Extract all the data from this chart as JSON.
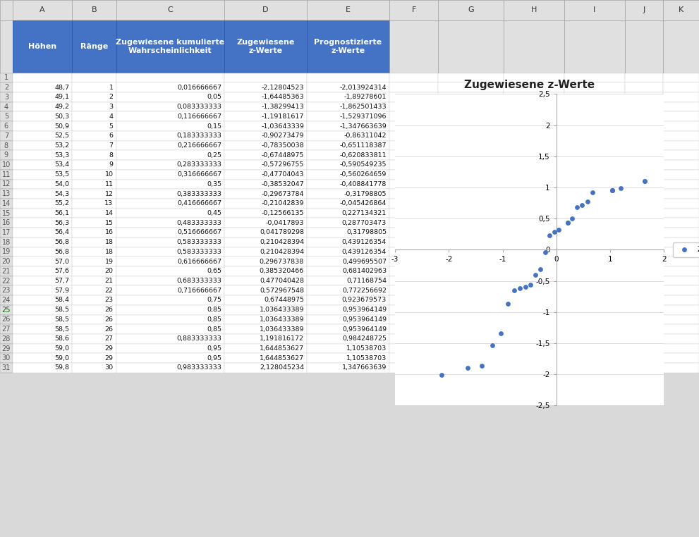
{
  "hoehen": [
    48.7,
    49.1,
    49.2,
    50.3,
    50.9,
    52.5,
    53.2,
    53.3,
    53.4,
    53.5,
    54.0,
    54.3,
    55.2,
    56.1,
    56.3,
    56.4,
    56.8,
    56.8,
    57.0,
    57.6,
    57.7,
    57.9,
    58.4,
    58.5,
    58.5,
    58.5,
    58.6,
    59.0,
    59.0,
    59.8
  ],
  "raenge": [
    1,
    2,
    3,
    4,
    5,
    6,
    7,
    8,
    9,
    10,
    11,
    12,
    13,
    14,
    15,
    16,
    18,
    18,
    19,
    20,
    21,
    22,
    23,
    26,
    26,
    26,
    27,
    29,
    29,
    30
  ],
  "kum_wahr_str": [
    "0,016666667",
    "0,05",
    "0,083333333",
    "0,116666667",
    "0,15",
    "0,183333333",
    "0,216666667",
    "0,25",
    "0,283333333",
    "0,316666667",
    "0,35",
    "0,383333333",
    "0,416666667",
    "0,45",
    "0,483333333",
    "0,516666667",
    "0,583333333",
    "0,583333333",
    "0,616666667",
    "0,65",
    "0,683333333",
    "0,716666667",
    "0,75",
    "0,85",
    "0,85",
    "0,85",
    "0,883333333",
    "0,95",
    "0,95",
    "0,983333333"
  ],
  "zug_z_str": [
    "-2,12804523",
    "-1,64485363",
    "-1,38299413",
    "-1,19181617",
    "-1,03643339",
    "-0,90273479",
    "-0,78350038",
    "-0,67448975",
    "-0,57296755",
    "-0,47704043",
    "-0,38532047",
    "-0,29673784",
    "-0,21042839",
    "-0,12566135",
    "-0,0417893",
    "0,041789298",
    "0,210428394",
    "0,210428394",
    "0,296737838",
    "0,385320466",
    "0,477040428",
    "0,572967548",
    "0,67448975",
    "1,036433389",
    "1,036433389",
    "1,036433389",
    "1,191816172",
    "1,644853627",
    "1,644853627",
    "2,128045234"
  ],
  "prog_z_str": [
    "-2,013924314",
    "-1,89278601",
    "-1,862501433",
    "-1,529371096",
    "-1,347663639",
    "-0,86311042",
    "-0,651118387",
    "-0,620833811",
    "-0,590549235",
    "-0,560264659",
    "-0,408841778",
    "-0,31798805",
    "-0,045426864",
    "0,227134321",
    "0,287703473",
    "0,31798805",
    "0,439126354",
    "0,439126354",
    "0,499695507",
    "0,681402963",
    "0,71168754",
    "0,772256692",
    "0,923679573",
    "0,953964149",
    "0,953964149",
    "0,953964149",
    "0,984248725",
    "1,10538703",
    "1,10538703",
    "1,347663639"
  ],
  "zug_z": [
    -2.12804523,
    -1.64485363,
    -1.38299413,
    -1.19181617,
    -1.03643339,
    -0.90273479,
    -0.78350038,
    -0.67448975,
    -0.57296755,
    -0.47704043,
    -0.38532047,
    -0.29673784,
    -0.21042839,
    -0.12566135,
    -0.0417893,
    0.041789298,
    0.210428394,
    0.210428394,
    0.296737838,
    0.385320466,
    0.477040428,
    0.572967548,
    0.67448975,
    1.036433389,
    1.036433389,
    1.036433389,
    1.191816172,
    1.644853627,
    1.644853627,
    2.128045234
  ],
  "prog_z": [
    -2.013924314,
    -1.89278601,
    -1.862501433,
    -1.529371096,
    -1.347663639,
    -0.86311042,
    -0.651118387,
    -0.620833811,
    -0.590549235,
    -0.560264659,
    -0.408841778,
    -0.31798805,
    -0.045426864,
    0.227134321,
    0.287703473,
    0.31798805,
    0.439126354,
    0.439126354,
    0.499695507,
    0.681402963,
    0.71168754,
    0.772256692,
    0.923679573,
    0.953964149,
    0.953964149,
    0.953964149,
    0.984248725,
    1.10538703,
    1.10538703,
    1.347663639
  ],
  "header_bg": "#4472C4",
  "header_fg": "#FFFFFF",
  "grid_color": "#B0B0B0",
  "chart_title": "Zugewiesene z-Werte",
  "legend_label": "Zugewiesene z-Werte",
  "dot_color": "#4472C4",
  "col_headers_line1": [
    "Höhen",
    "Ränge",
    "Zugewiesene kumulierte",
    "Zugewiesene",
    "Prognostizierte"
  ],
  "col_headers_line2": [
    "",
    "",
    "Wahrscheinlichkeit",
    "z-Werte",
    "z-Werte"
  ],
  "excel_bg": "#D9D9D9",
  "col_letter_bg": "#E0E0E0",
  "row_num_bg": "#E0E0E0",
  "white": "#FFFFFF",
  "fig_w": 9.91,
  "fig_h": 7.62,
  "fig_dpi": 100
}
